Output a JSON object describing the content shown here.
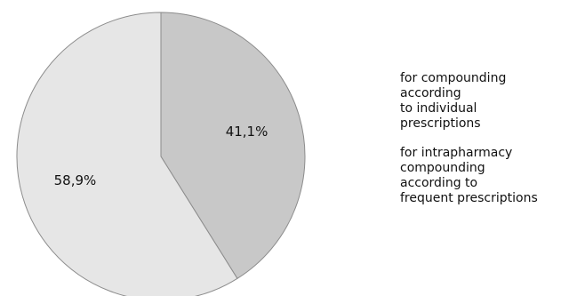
{
  "chart_data": {
    "type": "pie",
    "slices": [
      {
        "name": "for compounding\naccording\nto individual\nprescriptions",
        "value": 41.1,
        "label": "41,1%",
        "color": "#c8c8c8"
      },
      {
        "name": "for intrapharmacy\ncompounding\naccording to\nfrequent prescriptions",
        "value": 58.9,
        "label": "58,9%",
        "color": "#e6e6e6"
      }
    ],
    "start_angle": "12 o'clock",
    "direction": "clockwise",
    "slice_border_color": "#8c8c8c",
    "legend_position": "right"
  }
}
